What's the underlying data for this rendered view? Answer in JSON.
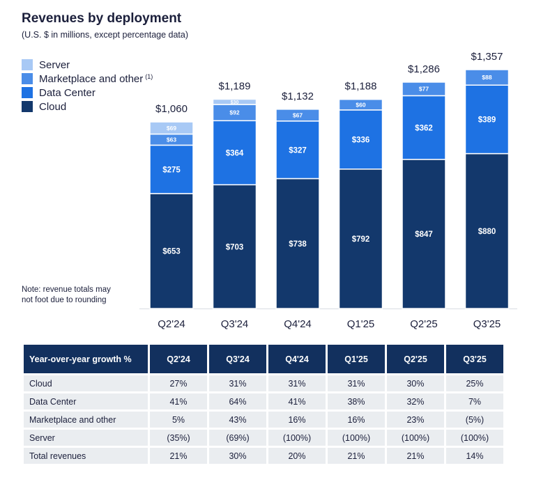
{
  "title": "Revenues by deployment",
  "subtitle": "(U.S. $ in millions, except percentage data)",
  "note": [
    "Note: revenue totals may",
    "not foot due to rounding"
  ],
  "colors": {
    "server": "#a8c9f5",
    "marketplace": "#4a8de8",
    "data_center": "#1e72e3",
    "cloud": "#13386c",
    "header_bg": "#12305e",
    "row_bg": "#eaedf0"
  },
  "legend": [
    {
      "label": "Server",
      "sup": "",
      "color": "#a8c9f5"
    },
    {
      "label": "Marketplace and other",
      "sup": "(1)",
      "color": "#4a8de8"
    },
    {
      "label": "Data Center",
      "sup": "",
      "color": "#1e72e3"
    },
    {
      "label": "Cloud",
      "sup": "",
      "color": "#13386c"
    }
  ],
  "chart_data": {
    "type": "bar",
    "stacked": true,
    "categories": [
      "Q2'24",
      "Q3'24",
      "Q4'24",
      "Q1'25",
      "Q2'25",
      "Q3'25"
    ],
    "series": [
      {
        "name": "Cloud",
        "values": [
          653,
          703,
          738,
          792,
          847,
          880
        ],
        "labels": [
          "$653",
          "$703",
          "$738",
          "$792",
          "$847",
          "$880"
        ]
      },
      {
        "name": "Data Center",
        "values": [
          275,
          364,
          327,
          336,
          362,
          389
        ],
        "labels": [
          "$275",
          "$364",
          "$327",
          "$336",
          "$362",
          "$389"
        ]
      },
      {
        "name": "Marketplace and other",
        "values": [
          63,
          92,
          67,
          60,
          77,
          88
        ],
        "labels": [
          "$63",
          "$92",
          "$67",
          "$60",
          "$77",
          "$88"
        ]
      },
      {
        "name": "Server",
        "values": [
          69,
          30,
          0,
          0,
          0,
          0
        ],
        "labels": [
          "$69",
          "$30",
          "",
          "",
          "",
          ""
        ]
      }
    ],
    "totals": [
      1060,
      1189,
      1132,
      1188,
      1286,
      1357
    ],
    "total_labels": [
      "$1,060",
      "$1,189",
      "$1,132",
      "$1,188",
      "$1,286",
      "$1,357"
    ],
    "ylim": [
      0,
      1357
    ]
  },
  "table": {
    "headers": [
      "Year-over-year growth %",
      "Q2'24",
      "Q3'24",
      "Q4'24",
      "Q1'25",
      "Q2'25",
      "Q3'25"
    ],
    "rows": [
      [
        "Cloud",
        "27%",
        "31%",
        "31%",
        "31%",
        "30%",
        "25%"
      ],
      [
        "Data Center",
        "41%",
        "64%",
        "41%",
        "38%",
        "32%",
        "7%"
      ],
      [
        "Marketplace and other",
        "5%",
        "43%",
        "16%",
        "16%",
        "23%",
        "(5%)"
      ],
      [
        "Server",
        "(35%)",
        "(69%)",
        "(100%)",
        "(100%)",
        "(100%)",
        "(100%)"
      ],
      [
        "Total revenues",
        "21%",
        "30%",
        "20%",
        "21%",
        "21%",
        "14%"
      ]
    ]
  }
}
